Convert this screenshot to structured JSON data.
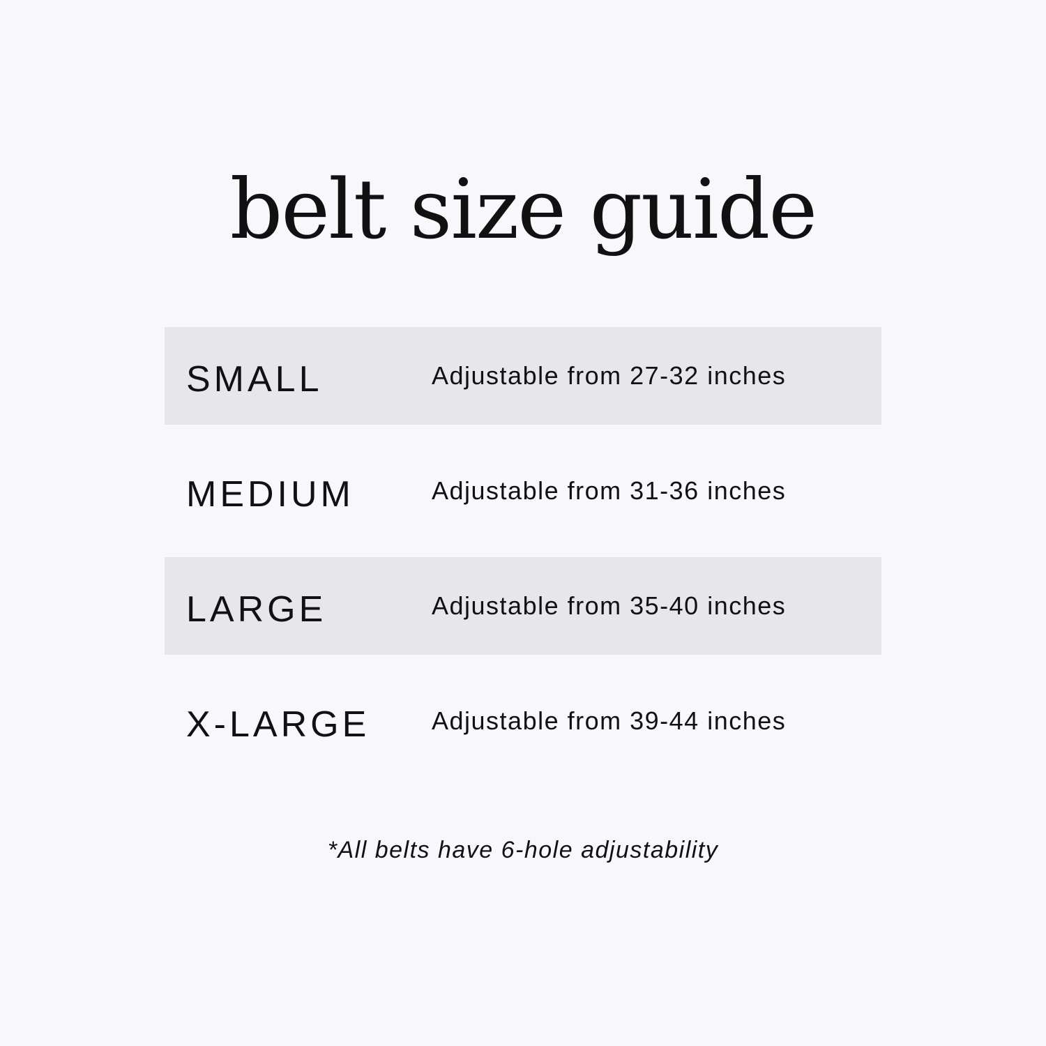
{
  "title": "belt size guide",
  "colors": {
    "background": "#f7f7fc",
    "row_shade": "#e7e6eb",
    "text": "#111111"
  },
  "sizes": [
    {
      "label": "SMALL",
      "description": "Adjustable from 27-32 inches"
    },
    {
      "label": "MEDIUM",
      "description": "Adjustable from 31-36 inches"
    },
    {
      "label": "LARGE",
      "description": "Adjustable from 35-40 inches"
    },
    {
      "label": "X-LARGE",
      "description": "Adjustable from 39-44 inches"
    }
  ],
  "footnote": "*All belts have 6-hole adjustability"
}
